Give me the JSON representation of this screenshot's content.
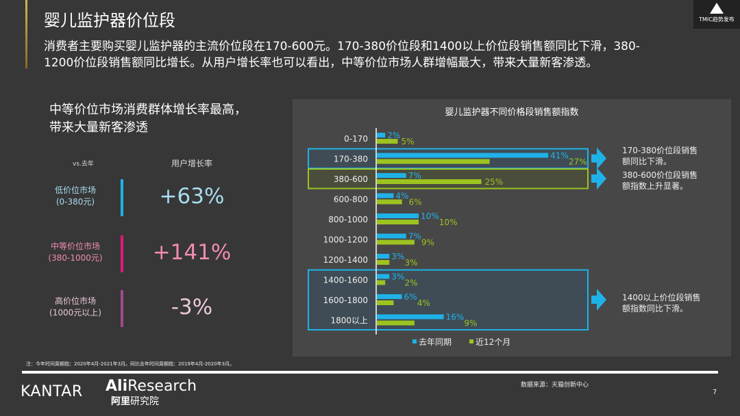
{
  "header": {
    "title": "婴儿监护器价位段",
    "intro": "消费者主要购买婴儿监护器的主流价位段在170-600元。170-380价位段和1400以上价位段销售额同比下滑，380-1200价位段销售额同比增长。从用户增长率也可以看出，中等价位市场人群增幅最大，带来大量新客渗透。",
    "badge": "TMIC趋势发布"
  },
  "left": {
    "heading": "中等价位市场消费群体增长率最高，带来大量新客渗透",
    "vs_label": "vs.去年",
    "col_label": "用户增长率",
    "rows": [
      {
        "name": "低价位市场",
        "range": "(0-380元)",
        "value": "+63%",
        "color": "#1fb2e8",
        "text_color": "#a8dcee"
      },
      {
        "name": "中等价位市场",
        "range": "(380-1000元)",
        "value": "+141%",
        "color": "#e0197a",
        "text_color": "#f08cb4"
      },
      {
        "name": "高价位市场",
        "range": "(1000元以上)",
        "value": "-3%",
        "color": "#a0488c",
        "text_color": "#e8c8d8"
      }
    ]
  },
  "chart_data": {
    "type": "bar",
    "orientation": "horizontal",
    "title": "婴儿监护器不同价格段销售额指数",
    "categories": [
      "0-170",
      "170-380",
      "380-600",
      "600-800",
      "800-1000",
      "1000-1200",
      "1200-1400",
      "1400-1600",
      "1600-1800",
      "1800以上"
    ],
    "series": [
      {
        "name": "去年同期",
        "color": "#1fb2e8",
        "values": [
          2,
          41,
          7,
          4,
          10,
          7,
          3,
          3,
          6,
          16
        ],
        "labels": [
          "2%",
          "41%",
          "7%",
          "4%",
          "10%",
          "7%",
          "3%",
          "3%",
          "6%",
          "16%"
        ]
      },
      {
        "name": "近12个月",
        "color": "#9cc320",
        "values": [
          5,
          27,
          25,
          6,
          10,
          9,
          3,
          2,
          4,
          9
        ],
        "labels": [
          "5%",
          "27%",
          "25%",
          "6%",
          "10%",
          "9%",
          "3%",
          "2%",
          "4%",
          "9%"
        ]
      }
    ],
    "legend": "bottom",
    "annotations": [
      "170-380价位段销售额同比下滑。",
      "380-600价位段销售额指数上升显著。",
      "1400以上价位段销售额指数同比下滑。"
    ]
  },
  "footer": {
    "footnote": "注：今年时间周期指：2020年4月-2021年3月。同比去年时间周期指：2019年4月-2020年3月。",
    "kantar": "KANTAR",
    "ali_en_bold": "Ali",
    "ali_en": "Research",
    "ali_cn_bold": "阿里",
    "ali_cn": "研究院",
    "source": "数据来源：天猫创新中心",
    "page": "7"
  }
}
